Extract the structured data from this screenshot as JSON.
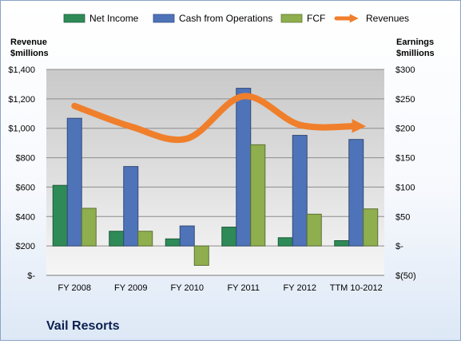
{
  "chart_data": {
    "type": "bar",
    "title": "Vail Resorts",
    "categories": [
      "FY 2008",
      "FY 2009",
      "FY 2010",
      "FY 2011",
      "FY 2012",
      "TTM 10-2012"
    ],
    "left_axis": {
      "label_line1": "Revenue",
      "label_line2": "$millions",
      "range": [
        0,
        1400
      ],
      "tick_values": [
        0,
        200,
        400,
        600,
        800,
        1000,
        1200,
        1400
      ],
      "tick_labels": [
        "$-",
        "$200",
        "$400",
        "$600",
        "$800",
        "$1,000",
        "$1,200",
        "$1,400"
      ]
    },
    "right_axis": {
      "label_line1": "Earnings",
      "label_line2": "$millions",
      "range": [
        -50,
        300
      ],
      "tick_values": [
        -50,
        0,
        50,
        100,
        150,
        200,
        250,
        300
      ],
      "tick_labels": [
        "$(50)",
        "$-",
        "$50",
        "$100",
        "$150",
        "$200",
        "$250",
        "$300"
      ]
    },
    "series": [
      {
        "name": "Net Income",
        "kind": "bar",
        "axis": "right",
        "color": "#2e8b57",
        "values": [
          103,
          25,
          12,
          32,
          14,
          9
        ]
      },
      {
        "name": "Cash from Operations",
        "kind": "bar",
        "axis": "right",
        "color": "#4f73b8",
        "values": [
          217,
          135,
          34,
          268,
          188,
          181
        ]
      },
      {
        "name": "FCF",
        "kind": "bar",
        "axis": "right",
        "color": "#8fae4e",
        "values": [
          64,
          25,
          -33,
          172,
          54,
          63
        ]
      },
      {
        "name": "Revenues",
        "kind": "line-arrow",
        "axis": "left",
        "color": "#f07f2c",
        "values": [
          1152,
          1012,
          930,
          1218,
          1023,
          1015
        ]
      }
    ],
    "grid": true,
    "legend_position": "top"
  }
}
